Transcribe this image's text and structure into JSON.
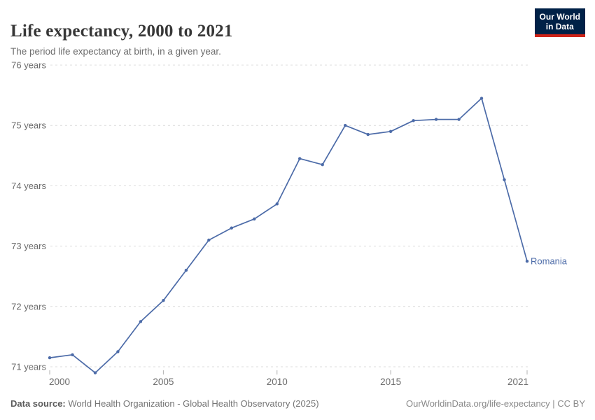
{
  "header": {
    "title": "Life expectancy, 2000 to 2021",
    "subtitle": "The period life expectancy at birth, in a given year.",
    "logo": {
      "line1": "Our World",
      "line2": "in Data"
    }
  },
  "chart_data": {
    "type": "line",
    "title": "Life expectancy, 2000 to 2021",
    "subtitle": "The period life expectancy at birth, in a given year.",
    "x": [
      2000,
      2001,
      2002,
      2003,
      2004,
      2005,
      2006,
      2007,
      2008,
      2009,
      2010,
      2011,
      2012,
      2013,
      2014,
      2015,
      2016,
      2017,
      2018,
      2019,
      2020,
      2021
    ],
    "series": [
      {
        "name": "Romania",
        "color": "#4C6BA8",
        "values": [
          71.15,
          71.2,
          70.9,
          71.25,
          71.75,
          72.1,
          72.6,
          73.1,
          73.3,
          73.45,
          73.7,
          74.45,
          74.35,
          75.0,
          74.85,
          74.9,
          75.08,
          75.1,
          75.1,
          75.45,
          74.1,
          72.75
        ]
      }
    ],
    "xlabel": "",
    "ylabel": "",
    "xlim": [
      2000,
      2021
    ],
    "ylim": [
      70.8,
      76.1
    ],
    "yticks": [
      71,
      72,
      73,
      74,
      75,
      76
    ],
    "ytick_suffix": " years",
    "xticks": [
      2000,
      2005,
      2010,
      2015,
      2021
    ],
    "grid": "horizontal-dashed",
    "legend": "end-of-line-label"
  },
  "footer": {
    "source_label": "Data source:",
    "source_text": "World Health Organization - Global Health Observatory (2025)",
    "credit": "OurWorldinData.org/life-expectancy | CC BY"
  },
  "colors": {
    "line": "#4C6BA8",
    "gridline": "#dcdcdc",
    "tick": "#b0b0b0",
    "axis_text": "#6b6b6b",
    "logo_bg": "#002147",
    "logo_red": "#cf2318",
    "title_text": "#373737"
  }
}
